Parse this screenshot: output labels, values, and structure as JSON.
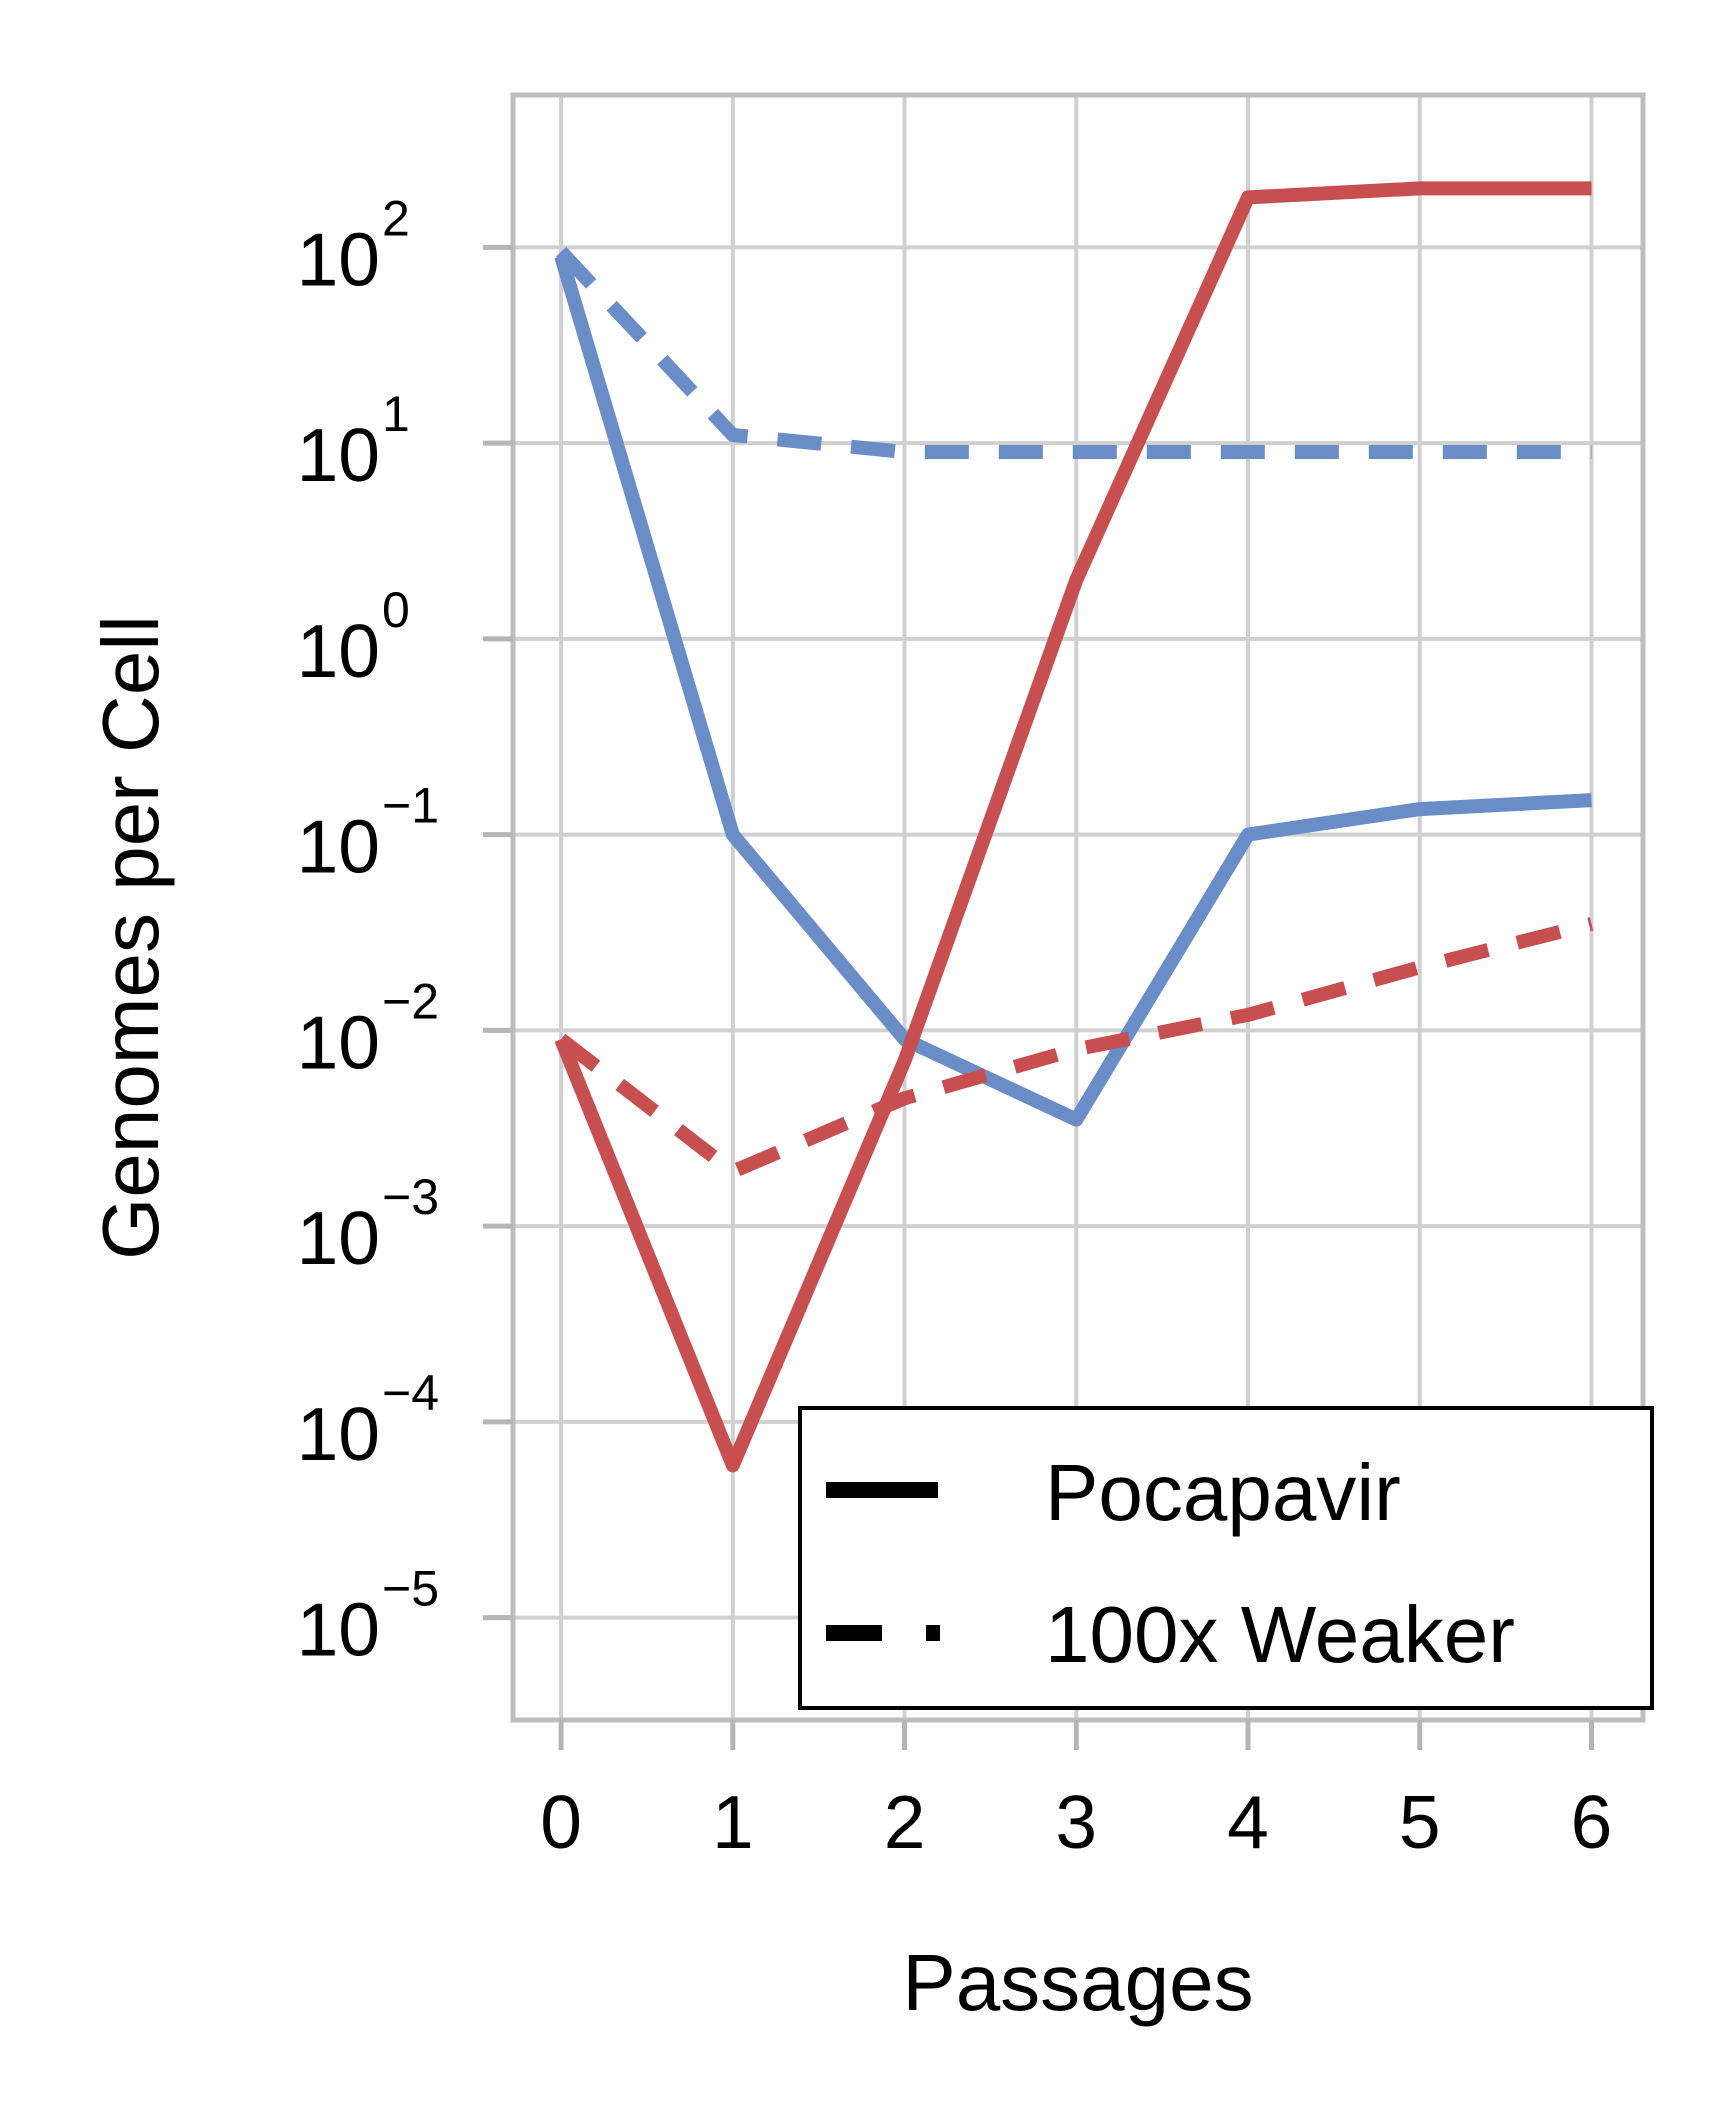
{
  "chart_data": {
    "type": "line",
    "xlabel": "Passages",
    "ylabel": "Genomes per Cell",
    "x": [
      0,
      1,
      2,
      3,
      4,
      5,
      6
    ],
    "x_ticks": [
      "0",
      "1",
      "2",
      "3",
      "4",
      "5",
      "6"
    ],
    "xlim": [
      -0.28,
      6.3
    ],
    "y_scale": "log",
    "ylim": [
      3e-06,
      600
    ],
    "y_ticks": [
      {
        "base": "10",
        "exp": "2",
        "value": 100
      },
      {
        "base": "10",
        "exp": "1",
        "value": 10
      },
      {
        "base": "10",
        "exp": "0",
        "value": 1
      },
      {
        "base": "10",
        "exp": "−1",
        "value": 0.1
      },
      {
        "base": "10",
        "exp": "−2",
        "value": 0.01
      },
      {
        "base": "10",
        "exp": "−3",
        "value": 0.001
      },
      {
        "base": "10",
        "exp": "−4",
        "value": 0.0001
      },
      {
        "base": "10",
        "exp": "−5",
        "value": 1e-05
      }
    ],
    "grid": true,
    "legend_position": "lower-right",
    "legend": [
      {
        "label": "Pocapavir",
        "style": "solid"
      },
      {
        "label": "100x Weaker",
        "style": "dashed"
      }
    ],
    "series": [
      {
        "color": "#6a8cc7",
        "style": "solid",
        "values": [
          90,
          0.1,
          0.009,
          0.0035,
          0.1,
          0.135,
          0.15
        ]
      },
      {
        "color": "#6a8cc7",
        "style": "dashed",
        "values": [
          95,
          11,
          9,
          9,
          9,
          9,
          9
        ]
      },
      {
        "color": "#c84f4f",
        "style": "solid",
        "values": [
          0.009,
          6e-05,
          0.007,
          2,
          180,
          200,
          200
        ]
      },
      {
        "color": "#c84f4f",
        "style": "dashed",
        "values": [
          0.009,
          0.0019,
          0.0045,
          0.008,
          0.012,
          0.021,
          0.035
        ]
      }
    ]
  }
}
